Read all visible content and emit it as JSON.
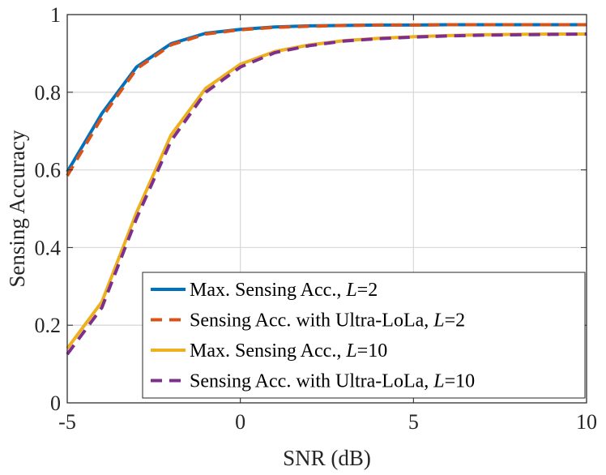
{
  "chart_data": {
    "type": "line",
    "title": "",
    "xlabel": "SNR (dB)",
    "ylabel": "Sensing Accuracy",
    "xlim": [
      -5,
      10
    ],
    "ylim": [
      0,
      1
    ],
    "xticks": [
      -5,
      0,
      5,
      10
    ],
    "xtick_labels": [
      "-5",
      "0",
      "5",
      "10"
    ],
    "yticks": [
      0,
      0.2,
      0.4,
      0.6,
      0.8,
      1
    ],
    "ytick_labels": [
      "0",
      "0.2",
      "0.4",
      "0.6",
      "0.8",
      "1"
    ],
    "grid": true,
    "legend_position": "bottom-right",
    "x": [
      -5,
      -4,
      -3,
      -2,
      -1,
      0,
      1,
      2,
      3,
      4,
      5,
      6,
      7,
      8,
      9,
      10
    ],
    "series": [
      {
        "name": "Max. Sensing Acc., L=2",
        "legend_prefix": "Max. Sensing Acc., ",
        "legend_var": "L",
        "legend_suffix": "=2",
        "color": "#0072BD",
        "dash": "solid",
        "values": [
          0.595,
          0.745,
          0.865,
          0.925,
          0.952,
          0.962,
          0.968,
          0.971,
          0.972,
          0.973,
          0.973,
          0.974,
          0.974,
          0.974,
          0.974,
          0.974
        ]
      },
      {
        "name": "Sensing Acc. with Ultra-LoLa, L=2",
        "legend_prefix": "Sensing Acc. with Ultra-LoLa, ",
        "legend_var": "L",
        "legend_suffix": "=2",
        "color": "#D95319",
        "dash": "dashed",
        "values": [
          0.585,
          0.735,
          0.86,
          0.922,
          0.95,
          0.961,
          0.967,
          0.97,
          0.972,
          0.973,
          0.973,
          0.974,
          0.974,
          0.974,
          0.974,
          0.974
        ]
      },
      {
        "name": "Max. Sensing Acc., L=10",
        "legend_prefix": "Max. Sensing Acc., ",
        "legend_var": "L",
        "legend_suffix": "=10",
        "color": "#EDB120",
        "dash": "solid",
        "values": [
          0.14,
          0.26,
          0.49,
          0.69,
          0.81,
          0.872,
          0.905,
          0.922,
          0.933,
          0.939,
          0.943,
          0.946,
          0.948,
          0.949,
          0.95,
          0.95
        ]
      },
      {
        "name": "Sensing Acc. with Ultra-LoLa, L=10",
        "legend_prefix": "Sensing Acc. with Ultra-LoLa, ",
        "legend_var": "L",
        "legend_suffix": "=10",
        "color": "#7E2F8E",
        "dash": "dashed",
        "values": [
          0.125,
          0.245,
          0.475,
          0.675,
          0.8,
          0.865,
          0.902,
          0.92,
          0.932,
          0.938,
          0.942,
          0.945,
          0.947,
          0.948,
          0.949,
          0.95
        ]
      }
    ]
  }
}
